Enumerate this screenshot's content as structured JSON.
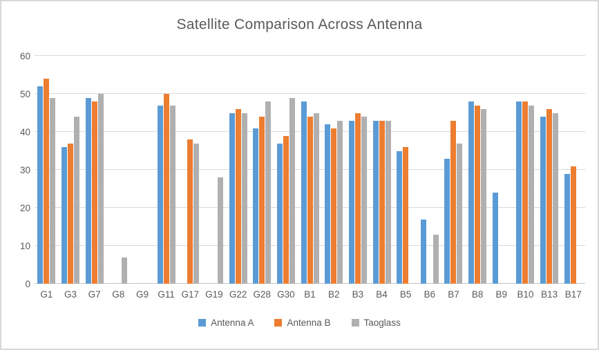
{
  "window": {
    "background": "#ffffff",
    "border_color": "#d8d8d8"
  },
  "chart_data": {
    "type": "bar",
    "title": "Satellite Comparison Across Antenna",
    "title_color": "#595959",
    "xlabel": "",
    "ylabel": "",
    "ylim": [
      0,
      60
    ],
    "yticks": [
      0,
      10,
      20,
      30,
      40,
      50,
      60
    ],
    "grid": "horizontal",
    "gridline_color": "#d9d9d9",
    "tick_color": "#595959",
    "legend_position": "bottom",
    "categories": [
      "G1",
      "G3",
      "G7",
      "G8",
      "G9",
      "G11",
      "G17",
      "G19",
      "G22",
      "G28",
      "G30",
      "B1",
      "B2",
      "B3",
      "B4",
      "B5",
      "B6",
      "B7",
      "B8",
      "B9",
      "B10",
      "B13",
      "B17"
    ],
    "series": [
      {
        "name": "Antenna A",
        "color": "#5b9bd5",
        "pattern": "solid",
        "values": [
          52,
          36,
          49,
          null,
          null,
          47,
          null,
          null,
          45,
          41,
          37,
          48,
          42,
          43,
          43,
          35,
          17,
          33,
          48,
          24,
          48,
          44,
          29
        ]
      },
      {
        "name": "Antenna B",
        "color": "#ed7d31",
        "pattern": "solid",
        "values": [
          54,
          37,
          48,
          null,
          null,
          50,
          38,
          null,
          46,
          44,
          39,
          44,
          41,
          45,
          43,
          36,
          null,
          43,
          47,
          null,
          48,
          46,
          31
        ]
      },
      {
        "name": "Taoglass",
        "color": "#a5a5a5",
        "pattern": "dotted",
        "values": [
          49,
          44,
          50,
          7,
          null,
          47,
          37,
          28,
          45,
          48,
          49,
          45,
          43,
          44,
          43,
          null,
          13,
          37,
          46,
          null,
          47,
          45,
          null
        ]
      }
    ]
  }
}
